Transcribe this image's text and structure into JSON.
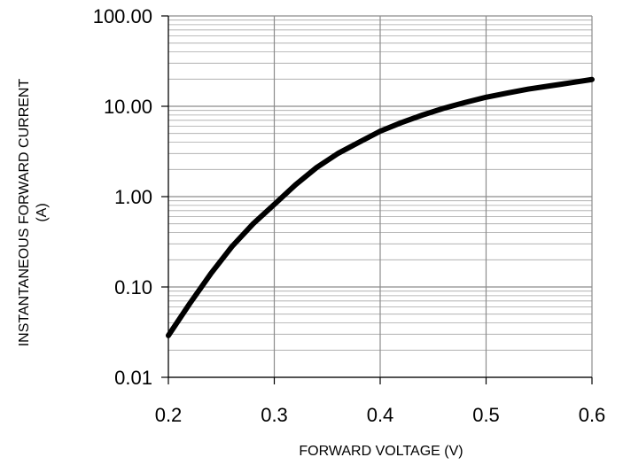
{
  "chart_data": {
    "type": "line",
    "xlabel": "FORWARD VOLTAGE (V)",
    "ylabel_line1": "INSTANTANEOUS FORWARD CURRENT",
    "ylabel_line2": "(A)",
    "xlim": [
      0.2,
      0.6
    ],
    "ylim": [
      0.01,
      100
    ],
    "y_scale": "log",
    "x_ticks": [
      0.2,
      0.3,
      0.4,
      0.5,
      0.6
    ],
    "x_tick_labels": [
      "0.2",
      "0.3",
      "0.4",
      "0.5",
      "0.6"
    ],
    "y_ticks": [
      0.01,
      0.1,
      1,
      10,
      100
    ],
    "y_tick_labels": [
      "0.01",
      "0.10",
      "1.00",
      "10.00",
      "100.00"
    ],
    "grid": true,
    "series": [
      {
        "color": "#000000",
        "x": [
          0.2,
          0.22,
          0.24,
          0.26,
          0.28,
          0.3,
          0.32,
          0.34,
          0.36,
          0.38,
          0.4,
          0.42,
          0.44,
          0.46,
          0.48,
          0.5,
          0.52,
          0.54,
          0.56,
          0.58,
          0.6
        ],
        "y": [
          0.029,
          0.065,
          0.14,
          0.28,
          0.5,
          0.82,
          1.35,
          2.1,
          3.0,
          4.0,
          5.3,
          6.6,
          8.0,
          9.5,
          11.0,
          12.6,
          14.0,
          15.5,
          16.8,
          18.2,
          19.8
        ]
      }
    ]
  }
}
